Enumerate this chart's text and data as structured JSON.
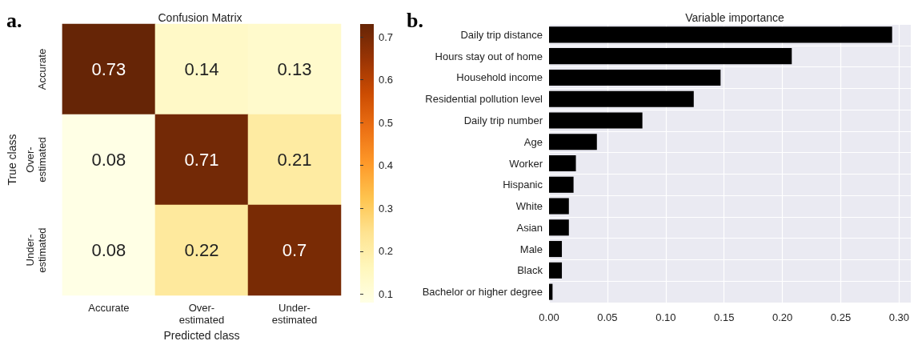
{
  "chart_data": [
    {
      "type": "heatmap",
      "title": "Confusion Matrix",
      "xlabel": "Predicted class",
      "ylabel": "True class",
      "annotations": [
        "a."
      ],
      "categories": [
        "Accurate",
        "Over-\nestimated",
        "Under-\nestimated"
      ],
      "y_categories": [
        "Accurate",
        "Over-\nestimated",
        "Under-\nestimated"
      ],
      "cells": [
        [
          0.73,
          0.14,
          0.13
        ],
        [
          0.08,
          0.71,
          0.21
        ],
        [
          0.08,
          0.22,
          0.7
        ]
      ],
      "data_labels": true,
      "clim": [
        0.08,
        0.73
      ],
      "cticks": [
        0.1,
        0.2,
        0.3,
        0.4,
        0.5,
        0.6,
        0.7
      ]
    },
    {
      "type": "bar",
      "orientation": "horizontal",
      "title": "Variable importance",
      "annotations": [
        "b."
      ],
      "categories": [
        "Daily trip distance",
        "Hours stay out of home",
        "Household income",
        "Residential pollution level",
        "Daily trip number",
        "Age",
        "Worker",
        "Hispanic",
        "White",
        "Asian",
        "Male",
        "Black",
        "Bachelor or higher degree"
      ],
      "values": [
        0.294,
        0.208,
        0.147,
        0.124,
        0.08,
        0.041,
        0.023,
        0.021,
        0.017,
        0.017,
        0.011,
        0.011,
        0.003
      ],
      "color": "#000000",
      "xlim": [
        0,
        0.31
      ],
      "xticks": [
        {
          "value": 0,
          "label": "0.00"
        },
        {
          "value": 0.05,
          "label": "0.05"
        },
        {
          "value": 0.1,
          "label": "0.10"
        },
        {
          "value": 0.15,
          "label": "0.15"
        },
        {
          "value": 0.2,
          "label": "0.20"
        },
        {
          "value": 0.25,
          "label": "0.25"
        },
        {
          "value": 0.3,
          "label": "0.30"
        }
      ],
      "grid": true
    }
  ]
}
